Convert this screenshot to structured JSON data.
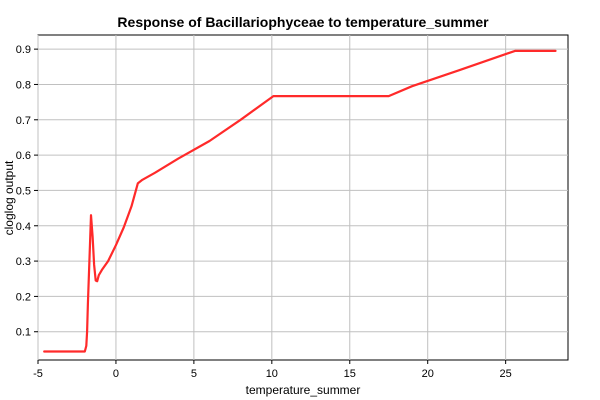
{
  "chart_data": {
    "type": "line",
    "title": "Response of Bacillariophyceae to temperature_summer",
    "xlabel": "temperature_summer",
    "ylabel": "cloglog output",
    "xlim": [
      -5,
      29
    ],
    "ylim": [
      0.02,
      0.94
    ],
    "xticks": [
      -5,
      0,
      5,
      10,
      15,
      20,
      25
    ],
    "yticks": [
      0.1,
      0.2,
      0.3,
      0.4,
      0.5,
      0.6,
      0.7,
      0.8,
      0.9
    ],
    "grid": true,
    "legend": "none",
    "series": [
      {
        "color": "#ff2a2a",
        "x": [
          -4.6,
          -2.0,
          -1.9,
          -1.85,
          -1.8,
          -1.7,
          -1.6,
          -1.5,
          -1.4,
          -1.3,
          -1.2,
          -1.1,
          -0.9,
          -0.5,
          0,
          0.5,
          1.0,
          1.4,
          1.7,
          2.5,
          4.0,
          6.0,
          8.0,
          10.1,
          17.5,
          19.0,
          22.0,
          25.6,
          28.2
        ],
        "y": [
          0.044,
          0.044,
          0.06,
          0.1,
          0.18,
          0.3,
          0.43,
          0.37,
          0.29,
          0.245,
          0.243,
          0.26,
          0.275,
          0.3,
          0.345,
          0.395,
          0.455,
          0.52,
          0.53,
          0.55,
          0.59,
          0.64,
          0.7,
          0.767,
          0.767,
          0.795,
          0.84,
          0.895,
          0.895
        ]
      }
    ]
  }
}
